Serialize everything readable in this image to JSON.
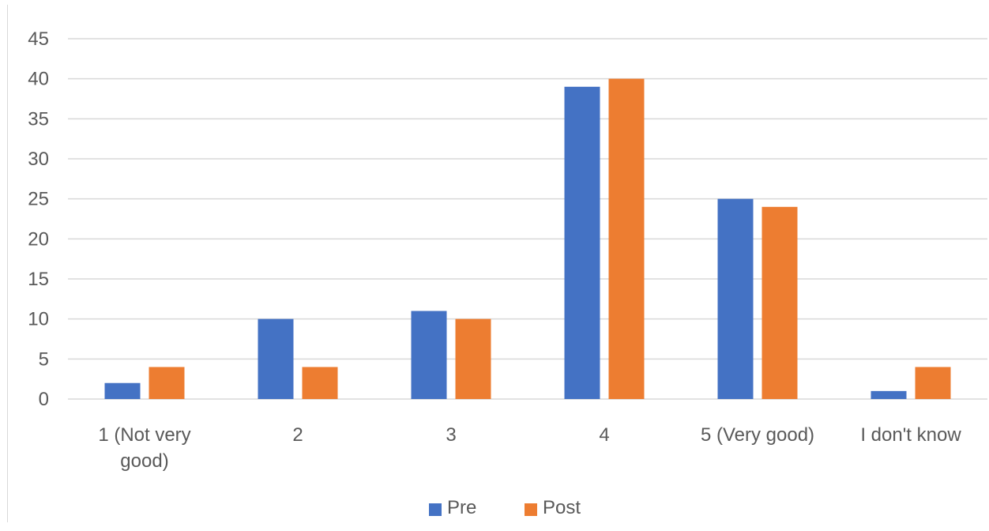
{
  "chart_data": {
    "type": "bar",
    "categories": [
      [
        "1 (Not very",
        "good)"
      ],
      [
        "2"
      ],
      [
        "3"
      ],
      [
        "4"
      ],
      [
        "5 (Very good)"
      ],
      [
        "I don't know"
      ]
    ],
    "series": [
      {
        "name": "Pre",
        "color": "#4472c4",
        "values": [
          2,
          10,
          11,
          39,
          25,
          1
        ]
      },
      {
        "name": "Post",
        "color": "#ed7d31",
        "values": [
          4,
          4,
          10,
          40,
          24,
          4
        ]
      }
    ],
    "yticks": [
      "0",
      "5",
      "10",
      "15",
      "20",
      "25",
      "30",
      "35",
      "40",
      "45"
    ],
    "ylim": [
      0,
      45
    ],
    "grid": true,
    "legend_position": "bottom"
  }
}
